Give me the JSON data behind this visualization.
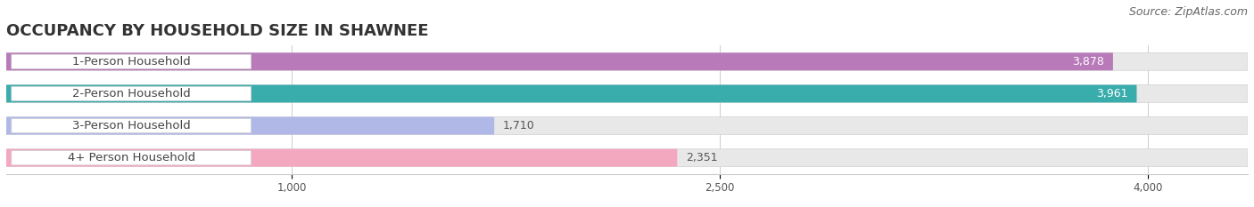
{
  "title": "OCCUPANCY BY HOUSEHOLD SIZE IN SHAWNEE",
  "source": "Source: ZipAtlas.com",
  "categories": [
    "1-Person Household",
    "2-Person Household",
    "3-Person Household",
    "4+ Person Household"
  ],
  "values": [
    3878,
    3961,
    1710,
    2351
  ],
  "bar_colors": [
    "#b87ab8",
    "#39acac",
    "#b0b8e8",
    "#f4a8c0"
  ],
  "bar_bg_color": "#e8e8e8",
  "background_color": "#ffffff",
  "xlim_max": 4350,
  "xticks": [
    1000,
    2500,
    4000
  ],
  "title_fontsize": 13,
  "source_fontsize": 9,
  "label_fontsize": 9.5,
  "value_fontsize": 9
}
